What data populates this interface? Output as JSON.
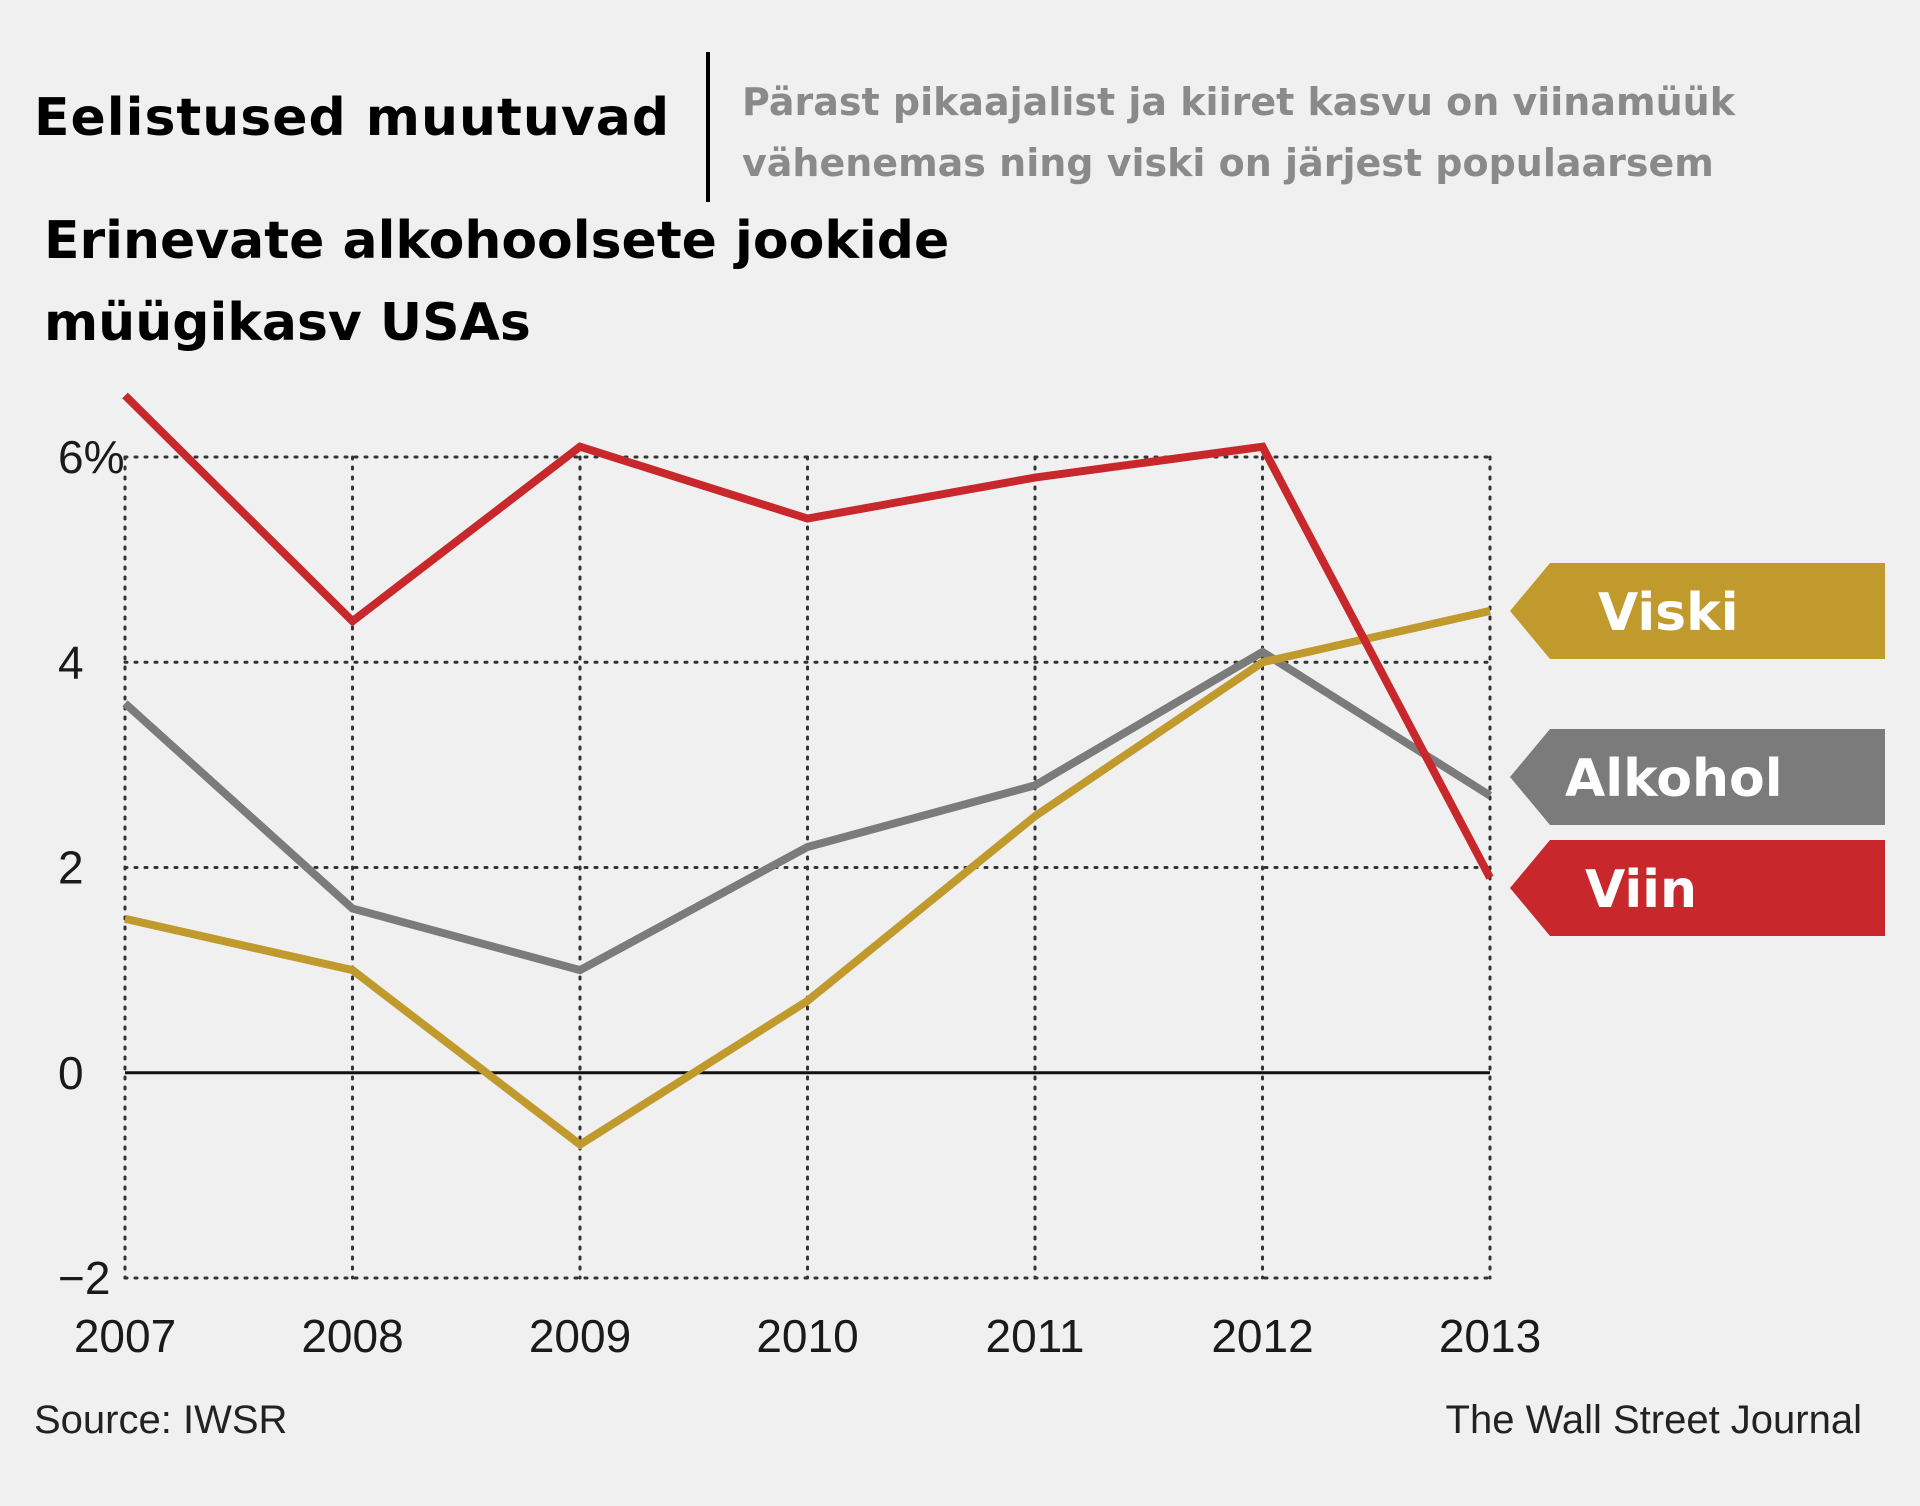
{
  "header": {
    "title": "Eelistused muutuvad",
    "subtitle_line1": "Pärast pikaajalist ja kiiret kasvu on viinamüük",
    "subtitle_line2": "vähenemas ning viski on järjest populaarsem"
  },
  "footer": {
    "source": "Source: IWSR",
    "credit": "The Wall Street Journal"
  },
  "chart_data": {
    "type": "line",
    "title_line1": "Erinevate alkohoolsete jookide",
    "title_line2": "müügikasv USAs",
    "xlabel": "",
    "ylabel": "",
    "x": [
      "2007",
      "2008",
      "2009",
      "2010",
      "2011",
      "2012",
      "2013"
    ],
    "ylim": [
      -2,
      6
    ],
    "yticks": [
      6,
      4,
      2,
      0,
      -2
    ],
    "ytick_labels": [
      "6%",
      "4",
      "2",
      "0",
      "−2"
    ],
    "grid": true,
    "grid_style": "dotted",
    "legend": "direct labels at right",
    "series": [
      {
        "name": "Viin",
        "color": "#c8282b",
        "values": [
          6.6,
          4.4,
          6.1,
          5.4,
          5.8,
          6.1,
          1.9
        ]
      },
      {
        "name": "Viski",
        "color": "#c19a2e",
        "values": [
          1.5,
          1.0,
          -0.7,
          0.7,
          2.5,
          4.0,
          4.5
        ]
      },
      {
        "name": "Alkohol",
        "color": "#7b7b7b",
        "values": [
          3.6,
          1.6,
          1.0,
          2.2,
          2.8,
          4.1,
          2.7
        ]
      }
    ]
  }
}
